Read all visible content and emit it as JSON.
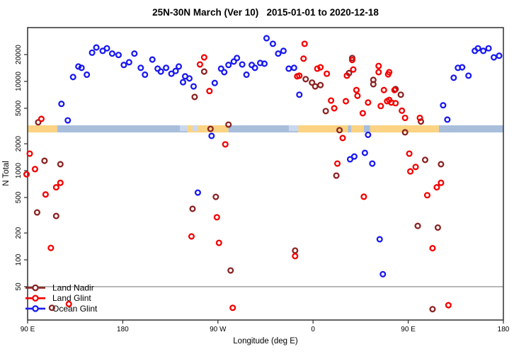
{
  "title": "25N-30N March (Ver 10)   2015-01-01 to 2020-12-18",
  "axes": {
    "x": {
      "label": "Longitude (deg E)",
      "range_deg_east": [
        90,
        540
      ],
      "ticks": [
        {
          "lon": 90,
          "label": "90 E"
        },
        {
          "lon": 180,
          "label": "180"
        },
        {
          "lon": 270,
          "label": "90 W"
        },
        {
          "lon": 360,
          "label": "0"
        },
        {
          "lon": 450,
          "label": "90 E"
        },
        {
          "lon": 540,
          "label": "180"
        }
      ]
    },
    "y": {
      "label": "N Total",
      "scale": "log",
      "range": [
        21,
        40000
      ],
      "ticks": [
        {
          "value": 20000,
          "label": "20000"
        },
        {
          "value": 10000,
          "label": "10000"
        },
        {
          "value": 5000,
          "label": "5000"
        },
        {
          "value": 2000,
          "label": "2000"
        },
        {
          "value": 1000,
          "label": "1000"
        },
        {
          "value": 500,
          "label": "500"
        },
        {
          "value": 200,
          "label": "200"
        },
        {
          "value": 100,
          "label": "100"
        },
        {
          "value": 50,
          "label": "50"
        }
      ]
    }
  },
  "colors": {
    "land_nadir": "#8b2323",
    "land_glint": "#f40000",
    "ocean_glint": "#1a1af0",
    "band_land": "#fbd382",
    "band_ocean": "#a8bedb",
    "band_ocean_light": "#c9d8ec",
    "frame": "#3c3c3c",
    "reference_line": "#808080"
  },
  "legend": [
    {
      "label": "Land Nadir",
      "color": "#8b2323"
    },
    {
      "label": "Land Glint",
      "color": "#f40000"
    },
    {
      "label": "Ocean Glint",
      "color": "#1a1af0"
    }
  ],
  "chart_data": {
    "type": "scatter",
    "title": "25N-30N March (Ver 10)   2015-01-01 to 2020-12-18",
    "xlabel": "Longitude (deg E)",
    "ylabel": "N Total",
    "x_is_longitude_deg_east_from": 90,
    "ylim": [
      21,
      40000
    ],
    "reference_line_y": 50,
    "surface_band": {
      "n_range": [
        2680,
        3220
      ],
      "segments": [
        {
          "type": "land",
          "from": 90,
          "to": 118
        },
        {
          "type": "ocean",
          "from": 118,
          "to": 241
        },
        {
          "type": "land",
          "from": 241,
          "to": 280
        },
        {
          "type": "ocean",
          "from": 280,
          "to": 346
        },
        {
          "type": "land",
          "from": 346,
          "to": 393
        },
        {
          "type": "ocean",
          "from": 393,
          "to": 396
        },
        {
          "type": "land",
          "from": 396,
          "to": 408
        },
        {
          "type": "ocean",
          "from": 408,
          "to": 414
        },
        {
          "type": "land",
          "from": 414,
          "to": 479
        },
        {
          "type": "ocean",
          "from": 479,
          "to": 540
        }
      ],
      "light_patches": [
        {
          "from": 234,
          "to": 241
        },
        {
          "from": 246,
          "to": 251
        },
        {
          "from": 337,
          "to": 346
        }
      ]
    },
    "series": [
      {
        "name": "Land Nadir",
        "color": "#8b2323",
        "points": [
          [
            100,
            3480
          ],
          [
            106,
            1290
          ],
          [
            121,
            1180
          ],
          [
            99,
            340
          ],
          [
            117,
            310
          ],
          [
            113,
            29
          ],
          [
            257,
            12900
          ],
          [
            248,
            6700
          ],
          [
            280,
            3280
          ],
          [
            263,
            2940
          ],
          [
            268,
            508
          ],
          [
            246,
            373
          ],
          [
            282,
            76
          ],
          [
            353,
            10600
          ],
          [
            359,
            9700
          ],
          [
            362,
            8800
          ],
          [
            367,
            9100
          ],
          [
            397,
            18300
          ],
          [
            394,
            12400
          ],
          [
            417,
            10400
          ],
          [
            417,
            9300
          ],
          [
            372,
            4650
          ],
          [
            385,
            2840
          ],
          [
            447,
            2690
          ],
          [
            462,
            3550
          ],
          [
            438,
            8200
          ],
          [
            443,
            7100
          ],
          [
            466,
            1320
          ],
          [
            481,
            1180
          ],
          [
            459,
            240
          ],
          [
            478,
            230
          ],
          [
            473,
            28
          ],
          [
            382,
            880
          ],
          [
            343,
            127
          ]
        ]
      },
      {
        "name": "Land Glint",
        "color": "#f40000",
        "points": [
          [
            103,
            3800
          ],
          [
            92,
            1550
          ],
          [
            97,
            1040
          ],
          [
            89,
            910
          ],
          [
            121,
            730
          ],
          [
            117,
            650
          ],
          [
            107,
            540
          ],
          [
            112,
            136
          ],
          [
            129,
            32
          ],
          [
            257,
            18600
          ],
          [
            253,
            15500
          ],
          [
            262,
            7800
          ],
          [
            277,
            1970
          ],
          [
            269,
            300
          ],
          [
            245,
            183
          ],
          [
            271,
            155
          ],
          [
            284,
            29
          ],
          [
            352,
            26400
          ],
          [
            351,
            18000
          ],
          [
            364,
            13900
          ],
          [
            367,
            14400
          ],
          [
            373,
            12200
          ],
          [
            347,
            11600
          ],
          [
            345,
            11400
          ],
          [
            397,
            17400
          ],
          [
            398,
            13600
          ],
          [
            392,
            11600
          ],
          [
            401,
            8000
          ],
          [
            402,
            6900
          ],
          [
            422,
            14900
          ],
          [
            422,
            12700
          ],
          [
            431,
            12000
          ],
          [
            427,
            8000
          ],
          [
            437,
            8000
          ],
          [
            377,
            6100
          ],
          [
            380,
            5000
          ],
          [
            391,
            6000
          ],
          [
            412,
            5800
          ],
          [
            424,
            5300
          ],
          [
            430,
            6000
          ],
          [
            434,
            5800
          ],
          [
            407,
            4400
          ],
          [
            432,
            6200
          ],
          [
            438,
            5700
          ],
          [
            444,
            4700
          ],
          [
            447,
            3900
          ],
          [
            461,
            3900
          ],
          [
            432,
            12700
          ],
          [
            388,
            2320
          ],
          [
            383,
            1200
          ],
          [
            408,
            510
          ],
          [
            343,
            110
          ],
          [
            451,
            1550
          ],
          [
            457,
            1100
          ],
          [
            452,
            980
          ],
          [
            481,
            730
          ],
          [
            477,
            650
          ],
          [
            468,
            530
          ],
          [
            473,
            135
          ],
          [
            488,
            31
          ]
        ]
      },
      {
        "name": "Ocean Glint",
        "color": "#1a1af0",
        "points": [
          [
            151,
            21000
          ],
          [
            155,
            24000
          ],
          [
            161,
            22000
          ],
          [
            165,
            23500
          ],
          [
            170,
            20500
          ],
          [
            176,
            19800
          ],
          [
            181,
            15300
          ],
          [
            186,
            16400
          ],
          [
            191,
            20500
          ],
          [
            197,
            14200
          ],
          [
            201,
            11900
          ],
          [
            133,
            11200
          ],
          [
            138,
            14700
          ],
          [
            141,
            14200
          ],
          [
            146,
            11900
          ],
          [
            122,
            5600
          ],
          [
            128,
            3660
          ],
          [
            208,
            17600
          ],
          [
            213,
            13900
          ],
          [
            216,
            12900
          ],
          [
            221,
            14200
          ],
          [
            226,
            12200
          ],
          [
            230,
            13100
          ],
          [
            233,
            14700
          ],
          [
            237,
            9800
          ],
          [
            239,
            11400
          ],
          [
            243,
            10800
          ],
          [
            247,
            8800
          ],
          [
            251,
            567
          ],
          [
            267,
            9600
          ],
          [
            273,
            13900
          ],
          [
            276,
            12700
          ],
          [
            280,
            15300
          ],
          [
            285,
            16700
          ],
          [
            288,
            18300
          ],
          [
            293,
            15500
          ],
          [
            297,
            11900
          ],
          [
            302,
            15300
          ],
          [
            305,
            14200
          ],
          [
            310,
            16100
          ],
          [
            314,
            15800
          ],
          [
            316,
            30500
          ],
          [
            322,
            26400
          ],
          [
            327,
            20500
          ],
          [
            332,
            22000
          ],
          [
            337,
            13900
          ],
          [
            342,
            14200
          ],
          [
            347,
            7100
          ],
          [
            264,
            2450
          ],
          [
            412,
            2520
          ],
          [
            409,
            1580
          ],
          [
            416,
            1200
          ],
          [
            395,
            1340
          ],
          [
            399,
            1440
          ],
          [
            423,
            170
          ],
          [
            426,
            69
          ],
          [
            513,
            22000
          ],
          [
            516,
            23500
          ],
          [
            521,
            22000
          ],
          [
            526,
            23500
          ],
          [
            531,
            18600
          ],
          [
            536,
            19400
          ],
          [
            497,
            14200
          ],
          [
            501,
            14400
          ],
          [
            507,
            11600
          ],
          [
            493,
            11000
          ],
          [
            483,
            5400
          ],
          [
            487,
            3730
          ]
        ]
      }
    ]
  }
}
